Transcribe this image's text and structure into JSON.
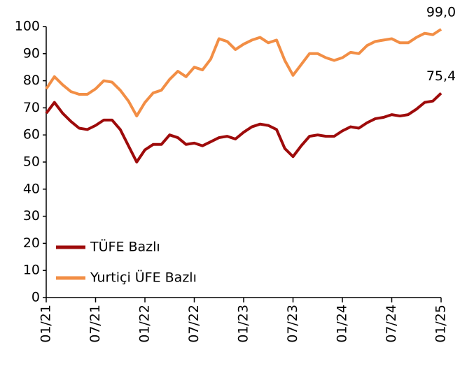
{
  "chart_data": {
    "type": "line",
    "categories": [
      "01/21",
      null,
      null,
      null,
      null,
      null,
      "07/21",
      null,
      null,
      null,
      null,
      null,
      "01/22",
      null,
      null,
      null,
      null,
      null,
      "07/22",
      null,
      null,
      null,
      null,
      null,
      "01/23",
      null,
      null,
      null,
      null,
      null,
      "07/23",
      null,
      null,
      null,
      null,
      null,
      "01/24",
      null,
      null,
      null,
      null,
      null,
      "07/24",
      null,
      null,
      null,
      null,
      null,
      "01/25"
    ],
    "series": [
      {
        "name": "TÜFE Bazlı",
        "color": "#9e0b0b",
        "values": [
          68,
          72,
          68,
          65,
          62.5,
          62,
          63.5,
          65.5,
          65.5,
          62,
          56,
          50,
          54.5,
          56.5,
          56.5,
          60,
          59,
          56.5,
          57,
          56,
          57.5,
          59,
          59.5,
          58.5,
          61,
          63,
          64,
          63.5,
          62,
          55,
          52,
          56,
          59.5,
          60,
          59.5,
          59.5,
          61.5,
          63,
          62.5,
          64.5,
          66,
          66.5,
          67.5,
          67,
          67.5,
          69.5,
          72,
          72.5,
          75.4
        ],
        "value_labels": [
          null,
          null,
          null,
          null,
          null,
          null,
          null,
          null,
          null,
          null,
          null,
          null,
          null,
          null,
          null,
          null,
          null,
          null,
          null,
          null,
          null,
          null,
          null,
          null,
          null,
          null,
          null,
          null,
          null,
          null,
          null,
          null,
          null,
          null,
          null,
          null,
          null,
          null,
          null,
          null,
          null,
          null,
          null,
          null,
          null,
          null,
          null,
          null,
          "75,4"
        ]
      },
      {
        "name": "Yurtiçi ÜFE Bazlı",
        "color": "#f28e45",
        "values": [
          77,
          81.5,
          78.5,
          76,
          75,
          75,
          77,
          80,
          79.5,
          76.5,
          72.5,
          67,
          72,
          75.5,
          76.5,
          80.5,
          83.5,
          81.5,
          85,
          84,
          88,
          95.5,
          94.5,
          91.5,
          93.5,
          95,
          96,
          94,
          95,
          87.5,
          82,
          86,
          90,
          90,
          88.5,
          87.5,
          88.5,
          90.5,
          90,
          93,
          94.5,
          95,
          95.5,
          94,
          94,
          96,
          97.5,
          97,
          99.0
        ],
        "value_labels": [
          null,
          null,
          null,
          null,
          null,
          null,
          null,
          null,
          null,
          null,
          null,
          null,
          null,
          null,
          null,
          null,
          null,
          null,
          null,
          null,
          null,
          null,
          null,
          null,
          null,
          null,
          null,
          null,
          null,
          null,
          null,
          null,
          null,
          null,
          null,
          null,
          null,
          null,
          null,
          null,
          null,
          null,
          null,
          null,
          null,
          null,
          null,
          null,
          "99,0"
        ]
      }
    ],
    "ylim": [
      0,
      100
    ],
    "yticks": [
      0,
      10,
      20,
      30,
      40,
      50,
      60,
      70,
      80,
      90,
      100
    ],
    "grid": false,
    "legend": "lower left"
  }
}
